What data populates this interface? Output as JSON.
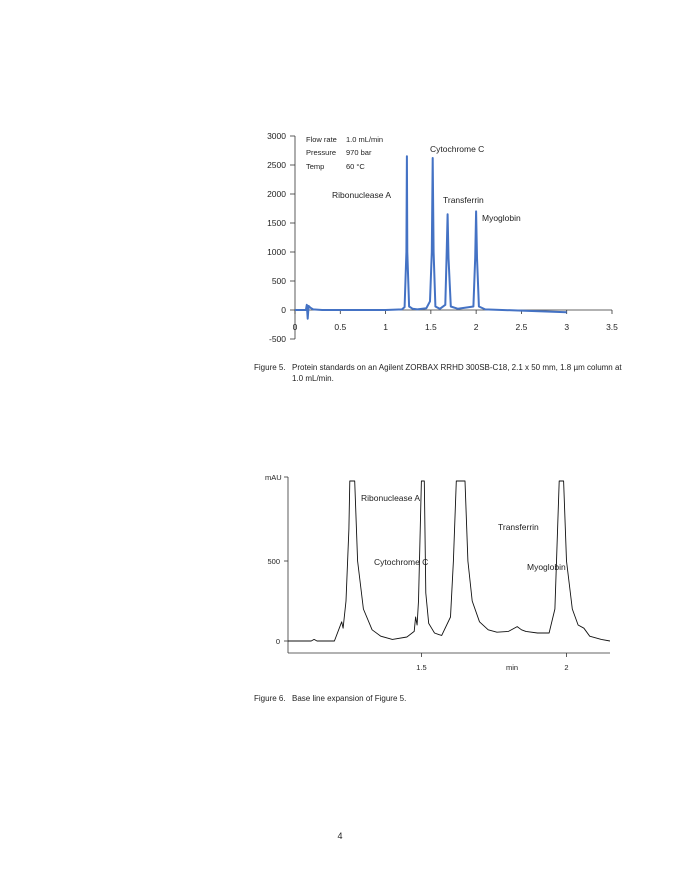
{
  "figure5": {
    "caption_number": "Figure 5.",
    "caption_text": "Protein standards on an Agilent ZORBAX RRHD 300SB-C18, 2.1 x 50 mm, 1.8 µm column at 1.0 mL/min.",
    "conditions": [
      {
        "label": "Flow rate",
        "value": "1.0 mL/min"
      },
      {
        "label": "Pressure",
        "value": "970 bar"
      },
      {
        "label": "Temp",
        "value": "60 °C"
      }
    ]
  },
  "figure6": {
    "caption_number": "Figure 6.",
    "caption_text": "Base line expansion of Figure 5."
  },
  "page_number": "4",
  "chart_data": [
    {
      "type": "line",
      "title": "",
      "xlabel": "",
      "ylabel": "",
      "xlim": [
        0,
        3.5
      ],
      "ylim": [
        -500,
        3000
      ],
      "x_ticks": [
        "0",
        "0.5",
        "1",
        "1.5",
        "2",
        "2.5",
        "3",
        "3.5"
      ],
      "y_ticks": [
        "3000",
        "2500",
        "2000",
        "1500",
        "1000",
        "500",
        "0",
        "-500"
      ],
      "grid": false,
      "color": "#4472c4",
      "annotations": [
        "Ribonuclease A",
        "Cytochrome C",
        "Transferrin",
        "Myoglobin"
      ],
      "series": [
        {
          "values": [
            [
              0,
              0
            ],
            [
              0.12,
              0
            ],
            [
              0.13,
              90
            ],
            [
              0.14,
              -150
            ],
            [
              0.15,
              70
            ],
            [
              0.17,
              40
            ],
            [
              0.2,
              10
            ],
            [
              0.3,
              0
            ],
            [
              1.0,
              0
            ],
            [
              1.18,
              10
            ],
            [
              1.21,
              50
            ],
            [
              1.23,
              1000
            ],
            [
              1.235,
              2650
            ],
            [
              1.24,
              1000
            ],
            [
              1.26,
              60
            ],
            [
              1.3,
              20
            ],
            [
              1.35,
              10
            ],
            [
              1.45,
              30
            ],
            [
              1.49,
              150
            ],
            [
              1.51,
              1000
            ],
            [
              1.52,
              2620
            ],
            [
              1.53,
              1000
            ],
            [
              1.55,
              60
            ],
            [
              1.6,
              20
            ],
            [
              1.66,
              90
            ],
            [
              1.675,
              1000
            ],
            [
              1.685,
              1650
            ],
            [
              1.695,
              900
            ],
            [
              1.72,
              60
            ],
            [
              1.8,
              20
            ],
            [
              1.97,
              60
            ],
            [
              1.99,
              900
            ],
            [
              2.0,
              1700
            ],
            [
              2.01,
              900
            ],
            [
              2.03,
              60
            ],
            [
              2.1,
              10
            ],
            [
              2.5,
              -10
            ],
            [
              3.0,
              -40
            ]
          ]
        }
      ]
    },
    {
      "type": "line",
      "title": "",
      "xlabel": "min",
      "ylabel": "mAU",
      "xlim": [
        1.04,
        2.15
      ],
      "ylim": [
        -100,
        1000
      ],
      "x_ticks": [
        "1.5",
        "2"
      ],
      "y_ticks": [
        "500",
        "0"
      ],
      "grid": false,
      "color": "#111111",
      "annotations": [
        "Ribonuclease A",
        "Cytochrome C",
        "Transferrin",
        "Myoglobin"
      ],
      "series": [
        {
          "values": [
            [
              1.04,
              0
            ],
            [
              1.12,
              0
            ],
            [
              1.13,
              10
            ],
            [
              1.14,
              0
            ],
            [
              1.2,
              0
            ],
            [
              1.225,
              120
            ],
            [
              1.23,
              80
            ],
            [
              1.24,
              250
            ],
            [
              1.25,
              700
            ],
            [
              1.253,
              1000
            ],
            [
              1.27,
              1000
            ],
            [
              1.28,
              500
            ],
            [
              1.3,
              200
            ],
            [
              1.33,
              70
            ],
            [
              1.36,
              30
            ],
            [
              1.4,
              10
            ],
            [
              1.45,
              25
            ],
            [
              1.475,
              60
            ],
            [
              1.48,
              150
            ],
            [
              1.485,
              100
            ],
            [
              1.49,
              250
            ],
            [
              1.5,
              1000
            ],
            [
              1.51,
              1000
            ],
            [
              1.515,
              300
            ],
            [
              1.525,
              110
            ],
            [
              1.535,
              80
            ],
            [
              1.545,
              50
            ],
            [
              1.56,
              40
            ],
            [
              1.57,
              35
            ],
            [
              1.6,
              150
            ],
            [
              1.61,
              500
            ],
            [
              1.62,
              1000
            ],
            [
              1.65,
              1000
            ],
            [
              1.66,
              500
            ],
            [
              1.675,
              250
            ],
            [
              1.7,
              120
            ],
            [
              1.73,
              70
            ],
            [
              1.76,
              55
            ],
            [
              1.8,
              60
            ],
            [
              1.83,
              90
            ],
            [
              1.845,
              70
            ],
            [
              1.86,
              60
            ],
            [
              1.9,
              50
            ],
            [
              1.94,
              50
            ],
            [
              1.96,
              200
            ],
            [
              1.975,
              1000
            ],
            [
              1.99,
              1000
            ],
            [
              2.0,
              500
            ],
            [
              2.02,
              200
            ],
            [
              2.04,
              100
            ],
            [
              2.06,
              80
            ],
            [
              2.08,
              30
            ],
            [
              2.12,
              10
            ],
            [
              2.15,
              0
            ]
          ]
        }
      ]
    }
  ]
}
